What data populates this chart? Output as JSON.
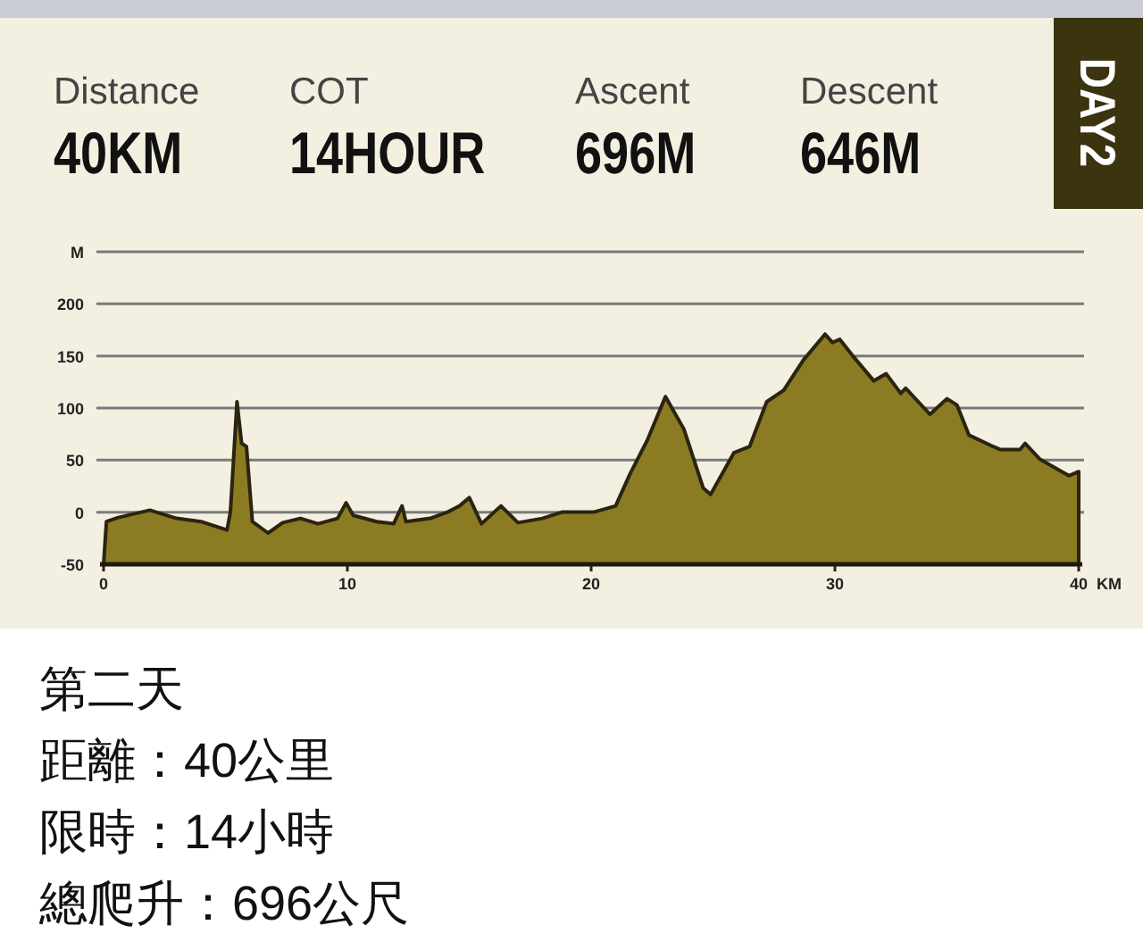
{
  "chart_data": {
    "type": "area",
    "color": "#8b7b22",
    "annotations": [
      "Distance",
      "40KM",
      "COT",
      "14HOUR",
      "Ascent",
      "696M",
      "Descent",
      "646M",
      "DAY2",
      "第二天",
      "距離：40公里",
      "限時：14小時",
      "總爬升：696公尺"
    ],
    "xlabel": "KM",
    "x": [
      0,
      0.12,
      0.6,
      1.9,
      3.0,
      4.0,
      5.06,
      5.2,
      5.47,
      5.66,
      5.86,
      6.1,
      6.75,
      7.35,
      8.07,
      8.8,
      9.6,
      9.95,
      10.24,
      11.2,
      11.9,
      12.24,
      12.4,
      13.4,
      14.1,
      14.6,
      15.0,
      15.5,
      16.3,
      17.0,
      18.0,
      18.8,
      20.1,
      21.0,
      21.6,
      22.3,
      23.05,
      23.8,
      24.6,
      24.9,
      25.85,
      26.5,
      27.2,
      27.9,
      28.7,
      29.6,
      29.9,
      30.2,
      30.7,
      31.6,
      32.1,
      32.7,
      32.9,
      33.9,
      34.6,
      35.0,
      35.5,
      36.5,
      36.8,
      37.6,
      37.8,
      38.4,
      39.6,
      40.0,
      40.0
    ],
    "values": [
      -50,
      -9,
      -5,
      2,
      -6,
      -9,
      -17,
      0,
      106,
      66,
      63,
      -9,
      -20,
      -10,
      -6,
      -11,
      -6,
      9,
      -3,
      -9,
      -11,
      6,
      -9,
      -6,
      0,
      6,
      14,
      -11,
      6,
      -10,
      -6,
      0,
      0,
      6,
      37,
      69,
      111,
      80,
      23,
      17,
      57,
      63,
      106,
      117,
      146,
      171,
      163,
      166,
      151,
      126,
      133,
      114,
      119,
      94,
      109,
      103,
      74,
      63,
      60,
      60,
      66,
      51,
      35,
      39,
      -50
    ],
    "xlim": [
      0,
      40
    ],
    "xticks": [
      0,
      10,
      20,
      30,
      40
    ],
    "ylim": [
      -50,
      250
    ],
    "yticks": [
      -50,
      0,
      50,
      100,
      150,
      200,
      {
        "value": 250,
        "label": "M"
      }
    ],
    "grid": "y"
  }
}
